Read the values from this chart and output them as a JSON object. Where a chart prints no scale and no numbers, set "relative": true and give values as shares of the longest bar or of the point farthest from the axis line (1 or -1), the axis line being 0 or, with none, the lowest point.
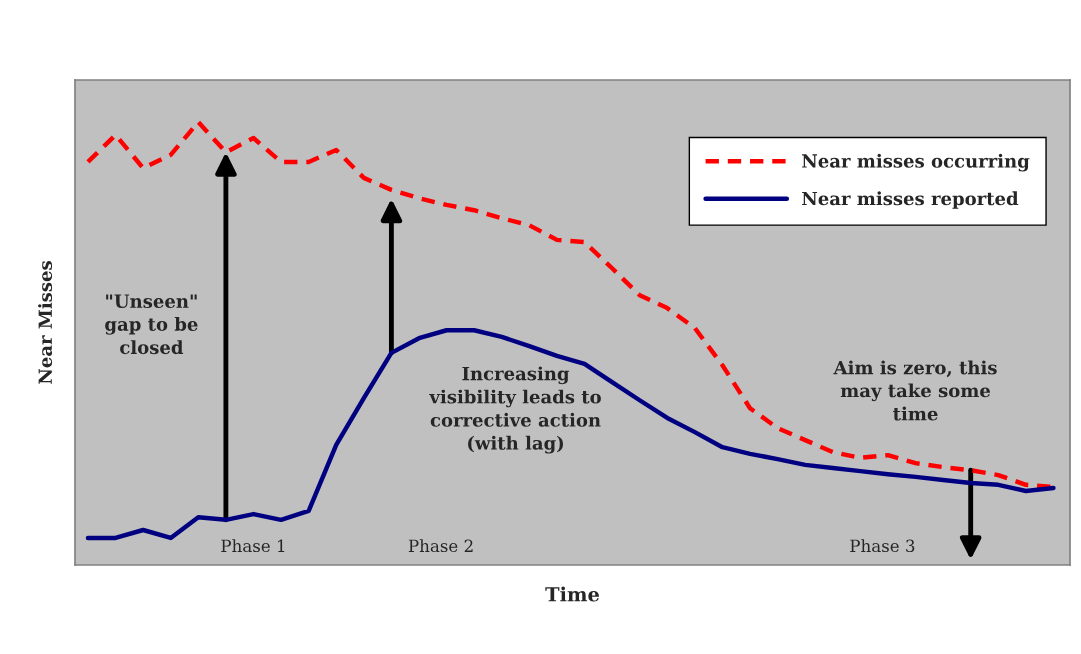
{
  "chart_data": {
    "type": "line",
    "relative": true,
    "xlabel": "Time",
    "ylabel": "Near Misses",
    "categories": [
      null,
      null,
      null,
      null,
      null,
      null,
      null,
      null,
      null,
      null,
      null,
      null,
      null,
      null,
      null,
      null,
      null,
      null,
      null,
      null,
      null,
      null,
      null,
      null,
      null,
      null,
      null,
      null,
      null,
      null,
      null,
      null,
      null,
      null,
      null,
      null
    ],
    "series": [
      {
        "name": "Near misses occurring",
        "color": "#ff0000",
        "line_style": "dashed",
        "values": [
          0.91,
          0.971,
          0.896,
          0.926,
          1.0,
          0.932,
          0.964,
          0.91,
          0.91,
          0.937,
          0.874,
          0.847,
          0.828,
          0.813,
          0.801,
          0.783,
          0.767,
          0.734,
          0.729,
          0.67,
          0.609,
          0.58,
          0.535,
          0.451,
          0.354,
          0.309,
          0.282,
          0.255,
          0.242,
          0.248,
          0.23,
          0.221,
          0.214,
          0.203,
          0.181,
          0.176
        ]
      },
      {
        "name": "Near misses reported",
        "color": "#000080",
        "line_style": "solid",
        "values": [
          0.061,
          0.061,
          0.079,
          0.061,
          0.108,
          0.102,
          0.115,
          0.102,
          0.122,
          0.271,
          0.377,
          0.479,
          0.512,
          0.53,
          0.53,
          0.515,
          0.494,
          0.472,
          0.454,
          0.413,
          0.372,
          0.332,
          0.3,
          0.266,
          0.251,
          0.239,
          0.226,
          0.219,
          0.212,
          0.205,
          0.199,
          0.192,
          0.185,
          0.181,
          0.167,
          0.174
        ]
      }
    ],
    "annotations": [
      "\"Unseen\"\ngap to be\nclosed",
      "Increasing\nvisibility leads to\ncorrective action\n(with lag)",
      "Aim is zero, this\nmay take some\ntime",
      "Phase 1",
      "Phase 2",
      "Phase 3"
    ],
    "legend": "top right",
    "marker": "none"
  }
}
